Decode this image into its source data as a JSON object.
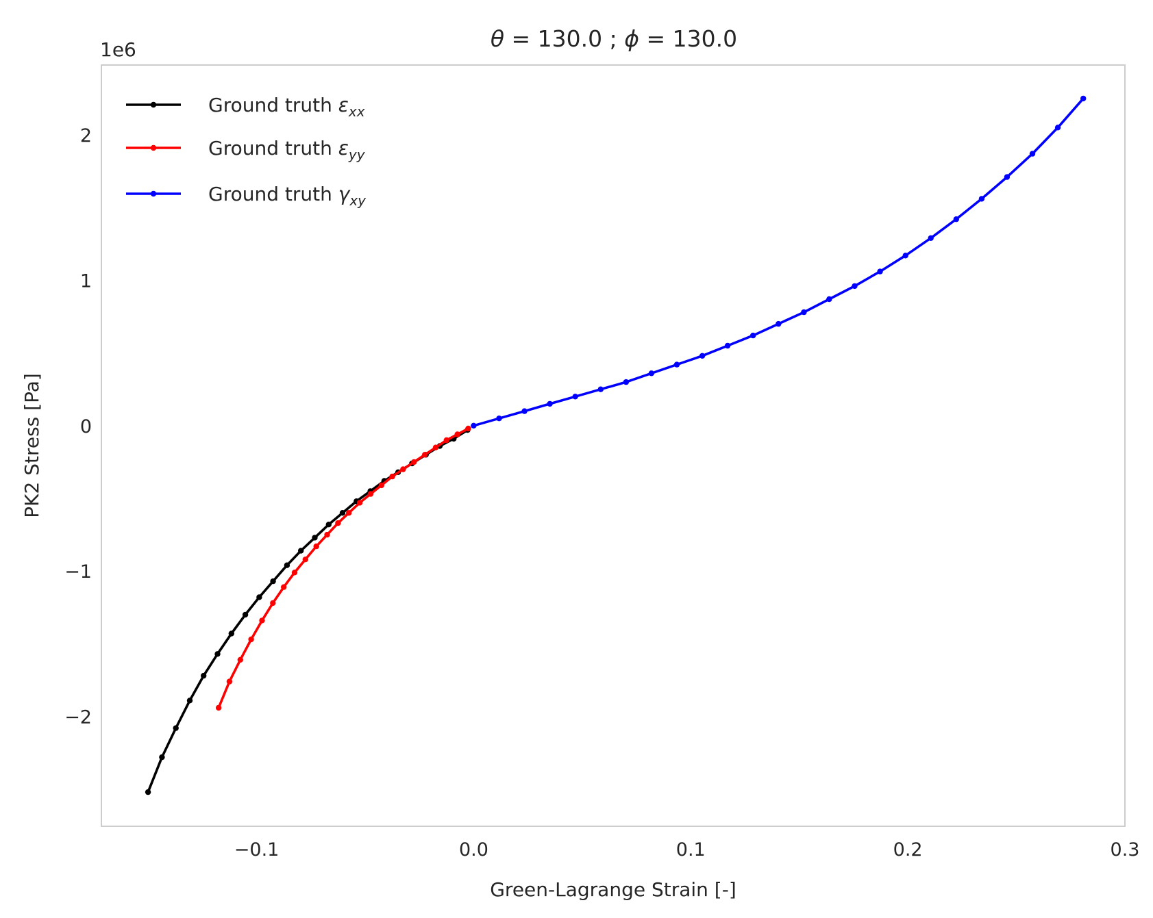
{
  "chart_data": {
    "type": "line",
    "title_parts": {
      "theta_symbol": "θ",
      "theta_text": " = 130.0 ; ",
      "phi_symbol": "ϕ",
      "phi_text": " = 130.0"
    },
    "xlabel": "Green-Lagrange Strain [-]",
    "ylabel": "PK2 Stress [Pa]",
    "y_offset_label": "1e6",
    "xlim": [
      -0.1715,
      0.3
    ],
    "ylim": [
      -2.755,
      2.48
    ],
    "grid": false,
    "legend_position": "upper-left",
    "x_ticks": [
      {
        "value": -0.1,
        "label": "−0.1"
      },
      {
        "value": 0.0,
        "label": "0.0"
      },
      {
        "value": 0.1,
        "label": "0.1"
      },
      {
        "value": 0.2,
        "label": "0.2"
      },
      {
        "value": 0.3,
        "label": "0.3"
      }
    ],
    "y_ticks": [
      {
        "value": -2,
        "label": "−2"
      },
      {
        "value": -1,
        "label": "−1"
      },
      {
        "value": 0,
        "label": "0"
      },
      {
        "value": 1,
        "label": "1"
      },
      {
        "value": 2,
        "label": "2"
      }
    ],
    "series": [
      {
        "key": "exx",
        "legend_text": "Ground truth ",
        "legend_symbol": "ε",
        "legend_sub": "xx",
        "color": "#000000",
        "x": [
          -0.15,
          -0.1436,
          -0.1372,
          -0.1308,
          -0.1244,
          -0.118,
          -0.1116,
          -0.1052,
          -0.0988,
          -0.0924,
          -0.086,
          -0.0796,
          -0.0732,
          -0.0668,
          -0.0604,
          -0.054,
          -0.0476,
          -0.0412,
          -0.0348,
          -0.0284,
          -0.022,
          -0.0156,
          -0.0092,
          -0.0028
        ],
        "y": [
          -2.52,
          -2.28,
          -2.08,
          -1.89,
          -1.72,
          -1.57,
          -1.43,
          -1.3,
          -1.18,
          -1.07,
          -0.96,
          -0.86,
          -0.77,
          -0.68,
          -0.6,
          -0.52,
          -0.45,
          -0.38,
          -0.32,
          -0.26,
          -0.2,
          -0.14,
          -0.09,
          -0.03
        ]
      },
      {
        "key": "eyy",
        "legend_text": "Ground truth ",
        "legend_symbol": "ε",
        "legend_sub": "yy",
        "color": "#ff0000",
        "x": [
          -0.1175,
          -0.1125,
          -0.1075,
          -0.1025,
          -0.0975,
          -0.0925,
          -0.0875,
          -0.0825,
          -0.0775,
          -0.0725,
          -0.0675,
          -0.0625,
          -0.0575,
          -0.0525,
          -0.0475,
          -0.0425,
          -0.0375,
          -0.0325,
          -0.0275,
          -0.0225,
          -0.0175,
          -0.0125,
          -0.0075,
          -0.0025
        ],
        "y": [
          -1.94,
          -1.76,
          -1.61,
          -1.47,
          -1.34,
          -1.22,
          -1.11,
          -1.01,
          -0.92,
          -0.83,
          -0.75,
          -0.67,
          -0.6,
          -0.53,
          -0.47,
          -0.41,
          -0.35,
          -0.3,
          -0.25,
          -0.2,
          -0.15,
          -0.1,
          -0.06,
          -0.02
        ]
      },
      {
        "key": "gxy",
        "legend_text": "Ground truth ",
        "legend_symbol": "γ",
        "legend_sub": "xy",
        "color": "#0000ff",
        "x": [
          0.0,
          0.0117,
          0.0234,
          0.0351,
          0.0468,
          0.0585,
          0.0702,
          0.0819,
          0.0936,
          0.1053,
          0.117,
          0.1287,
          0.1404,
          0.1521,
          0.1638,
          0.1755,
          0.1872,
          0.1989,
          0.2106,
          0.2223,
          0.234,
          0.2457,
          0.2574,
          0.2691,
          0.2808
        ],
        "y": [
          0.0,
          0.05,
          0.1,
          0.15,
          0.2,
          0.25,
          0.3,
          0.36,
          0.42,
          0.48,
          0.55,
          0.62,
          0.7,
          0.78,
          0.87,
          0.96,
          1.06,
          1.17,
          1.29,
          1.42,
          1.56,
          1.71,
          1.87,
          2.05,
          2.25
        ]
      }
    ]
  }
}
